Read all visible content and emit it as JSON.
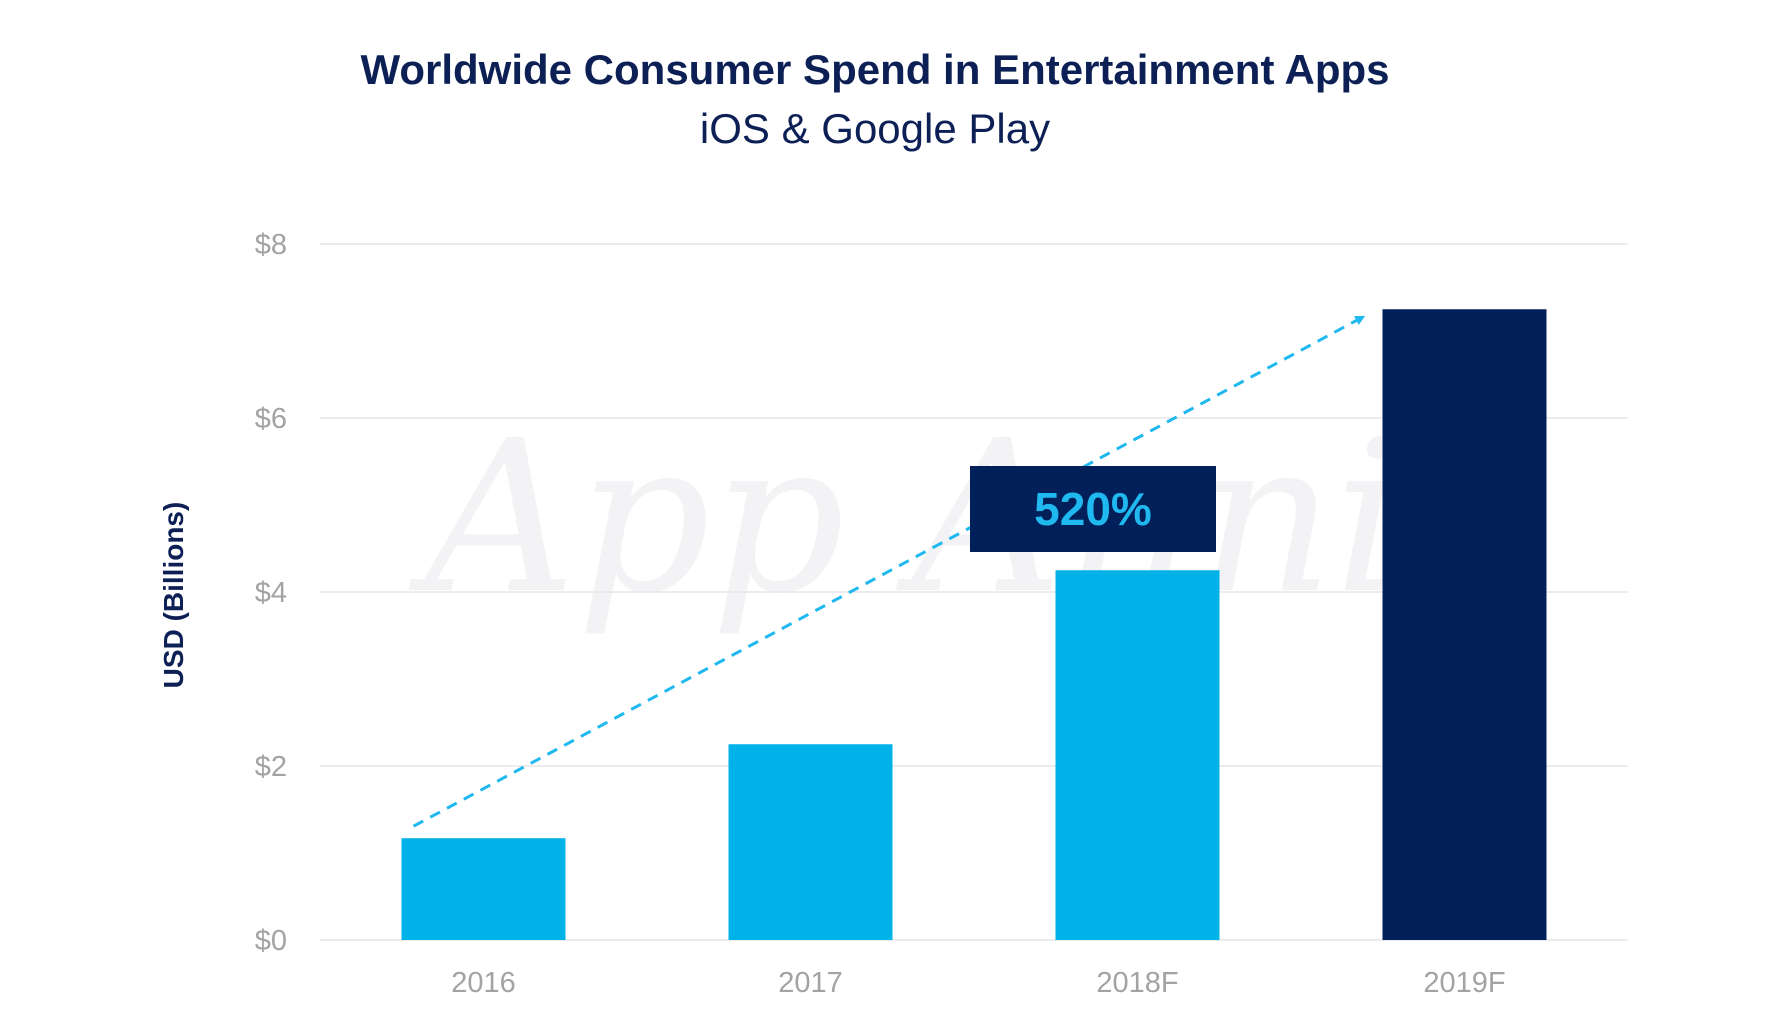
{
  "chart_data": {
    "type": "bar",
    "title": "Worldwide Consumer Spend in Entertainment Apps",
    "subtitle": "iOS & Google Play",
    "ylabel": "USD (Billions)",
    "xlabel": "",
    "categories": [
      "2016",
      "2017",
      "2018F",
      "2019F"
    ],
    "values": [
      1.17,
      2.25,
      4.25,
      7.25
    ],
    "bar_colors": [
      "#00b2e8",
      "#00b2e8",
      "#00b2e8",
      "#01205a"
    ],
    "ylim": [
      0,
      8
    ],
    "yticks": [
      0,
      2,
      4,
      6,
      8
    ],
    "ytick_labels": [
      "$0",
      "$2",
      "$4",
      "$6",
      "$8"
    ],
    "grid": true,
    "legend": "none",
    "annotation": {
      "text": "520%",
      "arrow_from": "2016",
      "arrow_to": "2019F",
      "box_color": "#01205a",
      "text_color": "#1fb8ef",
      "arrow_color": "#1fb8ef"
    },
    "watermark": "App Annie"
  }
}
